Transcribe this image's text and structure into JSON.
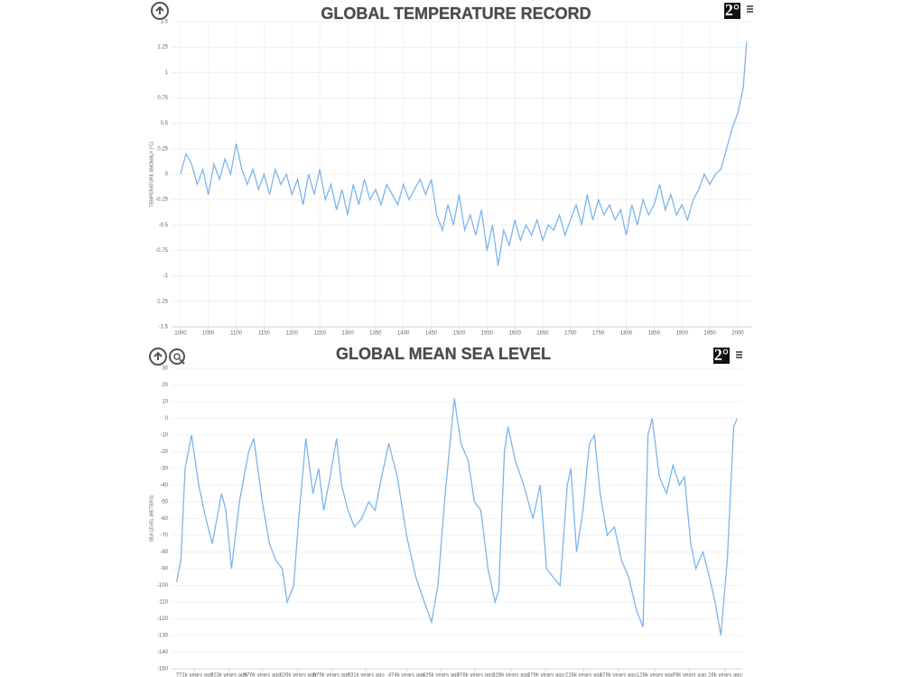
{
  "logo": "2°",
  "chart_data": [
    {
      "type": "line",
      "title": "GLOBAL TEMPERATURE RECORD",
      "y_label": "TEMPERATURE ANOMALY (°C)",
      "color": "#7cb5ec",
      "xgrid": true,
      "grid": true,
      "x": [
        1000,
        1010,
        1020,
        1030,
        1040,
        1050,
        1060,
        1070,
        1080,
        1090,
        1100,
        1110,
        1120,
        1130,
        1140,
        1150,
        1160,
        1170,
        1180,
        1190,
        1200,
        1210,
        1220,
        1230,
        1240,
        1250,
        1260,
        1270,
        1280,
        1290,
        1300,
        1310,
        1320,
        1330,
        1340,
        1350,
        1360,
        1370,
        1380,
        1390,
        1400,
        1410,
        1420,
        1430,
        1440,
        1450,
        1460,
        1470,
        1480,
        1490,
        1500,
        1510,
        1520,
        1530,
        1540,
        1550,
        1560,
        1570,
        1580,
        1590,
        1600,
        1610,
        1620,
        1630,
        1640,
        1650,
        1660,
        1670,
        1680,
        1690,
        1700,
        1710,
        1720,
        1730,
        1740,
        1750,
        1760,
        1770,
        1780,
        1790,
        1800,
        1810,
        1820,
        1830,
        1840,
        1850,
        1860,
        1870,
        1880,
        1890,
        1900,
        1910,
        1920,
        1930,
        1940,
        1950,
        1960,
        1970,
        1980,
        1990,
        2000,
        2010,
        2016
      ],
      "values": [
        0.0,
        0.2,
        0.1,
        -0.1,
        0.05,
        -0.2,
        0.1,
        -0.05,
        0.15,
        0.0,
        0.3,
        0.05,
        -0.1,
        0.05,
        -0.15,
        0.0,
        -0.2,
        0.05,
        -0.1,
        0.0,
        -0.2,
        -0.05,
        -0.3,
        0.0,
        -0.2,
        0.05,
        -0.25,
        -0.1,
        -0.35,
        -0.15,
        -0.4,
        -0.1,
        -0.3,
        -0.05,
        -0.25,
        -0.15,
        -0.3,
        -0.1,
        -0.2,
        -0.3,
        -0.1,
        -0.25,
        -0.15,
        -0.05,
        -0.2,
        -0.05,
        -0.4,
        -0.55,
        -0.3,
        -0.5,
        -0.2,
        -0.55,
        -0.4,
        -0.6,
        -0.35,
        -0.75,
        -0.5,
        -0.9,
        -0.55,
        -0.7,
        -0.45,
        -0.65,
        -0.5,
        -0.6,
        -0.45,
        -0.65,
        -0.5,
        -0.55,
        -0.4,
        -0.6,
        -0.45,
        -0.3,
        -0.5,
        -0.2,
        -0.45,
        -0.25,
        -0.4,
        -0.3,
        -0.45,
        -0.35,
        -0.6,
        -0.3,
        -0.5,
        -0.25,
        -0.4,
        -0.3,
        -0.1,
        -0.35,
        -0.2,
        -0.4,
        -0.3,
        -0.45,
        -0.25,
        -0.15,
        0.0,
        -0.1,
        0.0,
        0.05,
        0.25,
        0.45,
        0.6,
        0.85,
        1.3
      ],
      "xlim": [
        984,
        2026
      ],
      "xticks": [
        1000,
        1050,
        1100,
        1150,
        1200,
        1250,
        1300,
        1350,
        1400,
        1450,
        1500,
        1550,
        1600,
        1650,
        1700,
        1750,
        1800,
        1850,
        1900,
        1950,
        2000
      ],
      "ylim": [
        -1.5,
        1.5
      ],
      "yticks": [
        -1.5,
        -1.25,
        -1,
        -0.75,
        -0.5,
        -0.25,
        0,
        0.25,
        0.5,
        0.75,
        1,
        1.25,
        1.5
      ]
    },
    {
      "type": "line",
      "title": "GLOBAL MEAN SEA LEVEL",
      "y_label": "SEA LEVEL (METERS)",
      "color": "#7cb5ec",
      "xgrid": false,
      "grid": true,
      "x": [
        796,
        790,
        784,
        775,
        765,
        755,
        746,
        733,
        727,
        719,
        708,
        695,
        688,
        676,
        666,
        657,
        648,
        641,
        632,
        625,
        615,
        605,
        597,
        590,
        581,
        572,
        565,
        556,
        547,
        537,
        527,
        518,
        509,
        499,
        487,
        474,
        461,
        449,
        439,
        430,
        421,
        411,
        407,
        398,
        388,
        379,
        370,
        360,
        350,
        345,
        337,
        332,
        322,
        310,
        297,
        287,
        278,
        269,
        259,
        249,
        244,
        236,
        227,
        218,
        211,
        203,
        193,
        183,
        173,
        163,
        152,
        143,
        136,
        130,
        120,
        110,
        101,
        92,
        85,
        76,
        69,
        59,
        50,
        42,
        34,
        25,
        16,
        11
      ],
      "values": [
        -98,
        -85,
        -30,
        -10,
        -40,
        -60,
        -75,
        -45,
        -55,
        -90,
        -50,
        -20,
        -12,
        -50,
        -75,
        -85,
        -90,
        -110,
        -100,
        -60,
        -12,
        -45,
        -30,
        -55,
        -35,
        -12,
        -40,
        -55,
        -65,
        -60,
        -50,
        -55,
        -35,
        -15,
        -35,
        -70,
        -95,
        -110,
        -122,
        -100,
        -50,
        -5,
        12,
        -15,
        -25,
        -50,
        -55,
        -90,
        -110,
        -103,
        -20,
        -5,
        -25,
        -40,
        -60,
        -40,
        -90,
        -95,
        -100,
        -40,
        -30,
        -80,
        -55,
        -15,
        -10,
        -45,
        -70,
        -65,
        -85,
        -95,
        -115,
        -125,
        -10,
        0,
        -35,
        -45,
        -28,
        -40,
        -35,
        -75,
        -90,
        -80,
        -95,
        -110,
        -130,
        -85,
        -5,
        0
      ],
      "xlim": [
        803,
        4
      ],
      "xticks": [
        {
          "value": 771,
          "label": "771k years ago"
        },
        {
          "value": 723,
          "label": "723k years ago"
        },
        {
          "value": 676,
          "label": "676k years ago"
        },
        {
          "value": 626,
          "label": "626k years ago"
        },
        {
          "value": 579,
          "label": "579k years ago"
        },
        {
          "value": 531,
          "label": "531k years ago"
        },
        {
          "value": 474,
          "label": "474k years ago"
        },
        {
          "value": 426,
          "label": "426k years ago"
        },
        {
          "value": 378,
          "label": "378k years ago"
        },
        {
          "value": 328,
          "label": "328k years ago"
        },
        {
          "value": 279,
          "label": "279k years ago"
        },
        {
          "value": 226,
          "label": "226k years ago"
        },
        {
          "value": 178,
          "label": "178k years ago"
        },
        {
          "value": 126,
          "label": "126k years ago"
        },
        {
          "value": 78,
          "label": "78k years ago"
        },
        {
          "value": 28,
          "label": "28k years ago"
        }
      ],
      "ylim": [
        -150,
        30
      ],
      "yticks": [
        -150,
        -140,
        -130,
        -120,
        -110,
        -100,
        -90,
        -80,
        -70,
        -60,
        -50,
        -40,
        -30,
        -20,
        -10,
        0,
        10,
        20,
        30
      ]
    }
  ]
}
